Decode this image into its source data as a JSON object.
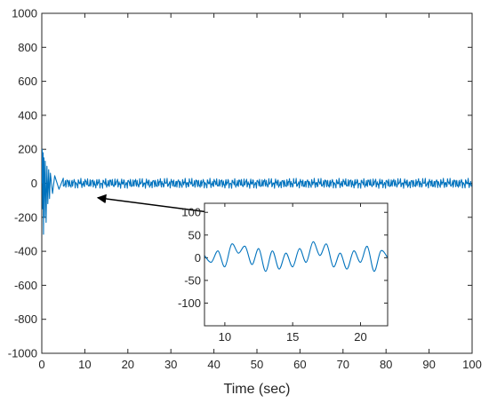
{
  "chart_data": [
    {
      "type": "line",
      "title": "",
      "xlabel": "Time (sec)",
      "ylabel": "",
      "xlim": [
        0,
        100
      ],
      "ylim": [
        -1000,
        1000
      ],
      "x_ticks": [
        "0",
        "10",
        "20",
        "30",
        "40",
        "50",
        "60",
        "70",
        "80",
        "90",
        "100"
      ],
      "y_ticks": [
        "1000",
        "800",
        "600",
        "400",
        "200",
        "0",
        "-200",
        "-400",
        "-600",
        "-800",
        "-1000"
      ],
      "grid": false,
      "series": [
        {
          "color": "#0072bd",
          "description_points": {
            "x": [
              0,
              0.1,
              0.2,
              0.3,
              0.4,
              0.5,
              0.6,
              0.8,
              1.0,
              1.2,
              1.4,
              1.6,
              1.8,
              2.0,
              2.5,
              3.0,
              4.0,
              5.0
            ],
            "y": [
              0,
              200,
              -150,
              180,
              -300,
              150,
              -200,
              130,
              -230,
              100,
              -120,
              80,
              -90,
              60,
              -60,
              45,
              -35,
              30
            ]
          },
          "steady_state_amplitude": 35
        }
      ]
    },
    {
      "type": "line",
      "title": "",
      "xlabel": "",
      "ylabel": "",
      "xlim": [
        8.5,
        22
      ],
      "ylim": [
        -150,
        120
      ],
      "x_ticks": [
        "10",
        "15",
        "20"
      ],
      "y_ticks": [
        "100",
        "50",
        "0",
        "-50",
        "-100"
      ],
      "grid": false,
      "series": [
        {
          "color": "#0072bd",
          "x": [
            8.5,
            9.0,
            9.5,
            10.0,
            10.5,
            11.0,
            11.5,
            12.0,
            12.5,
            13.0,
            13.5,
            14.0,
            14.5,
            15.0,
            15.5,
            16.0,
            16.5,
            17.0,
            17.5,
            18.0,
            18.5,
            19.0,
            19.5,
            20.0,
            20.5,
            21.0,
            21.5,
            22.0
          ],
          "y": [
            5,
            -10,
            15,
            -20,
            30,
            10,
            25,
            -15,
            20,
            -30,
            15,
            -25,
            10,
            -20,
            20,
            -10,
            35,
            5,
            30,
            -20,
            10,
            -25,
            15,
            -10,
            25,
            -30,
            15,
            0
          ]
        }
      ]
    }
  ],
  "annotation": {
    "type": "arrow",
    "from": [
      48,
      -200
    ],
    "to": [
      13,
      -85
    ]
  }
}
